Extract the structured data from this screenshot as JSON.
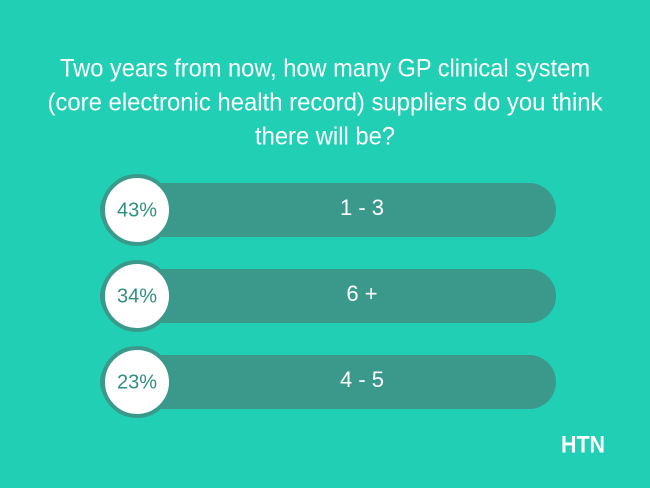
{
  "title_lines": [
    "Two years from now, how many GP clinical system",
    "(core electronic health record) suppliers do you think",
    "there will be?"
  ],
  "options": [
    {
      "percent": "43%",
      "label": "1 - 3"
    },
    {
      "percent": "34%",
      "label": "6 +"
    },
    {
      "percent": "23%",
      "label": "4 - 5"
    }
  ],
  "brand": "HTN"
}
